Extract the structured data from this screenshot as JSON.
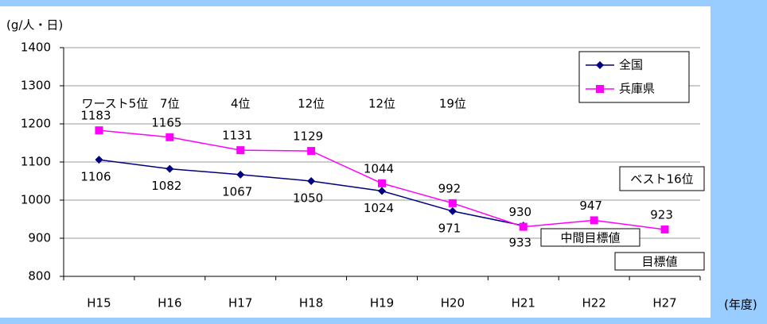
{
  "chart_data": {
    "type": "line",
    "y_label": "(g/人・日)",
    "x_label": "(年度)",
    "categories": [
      "H15",
      "H16",
      "H17",
      "H18",
      "H19",
      "H20",
      "H21",
      "H22",
      "H27"
    ],
    "series": [
      {
        "name": "全国",
        "color": "#000080",
        "marker": "diamond",
        "values": [
          1106,
          1082,
          1067,
          1050,
          1024,
          971,
          933,
          null,
          null
        ]
      },
      {
        "name": "兵庫県",
        "color": "#ff00ff",
        "marker": "square",
        "values": [
          1183,
          1165,
          1131,
          1129,
          1044,
          992,
          930,
          947,
          923
        ]
      }
    ],
    "rank_annotations": [
      "ワースト5位",
      "7位",
      "4位",
      "12位",
      "12位",
      "19位"
    ],
    "best_rank": "ベスト16位",
    "target_labels": [
      "中間目標値",
      "目標値"
    ],
    "ylim": [
      800,
      1400
    ],
    "yticks": [
      800,
      900,
      1000,
      1100,
      1200,
      1300,
      1400
    ],
    "grid": true,
    "legend": "upper right"
  }
}
